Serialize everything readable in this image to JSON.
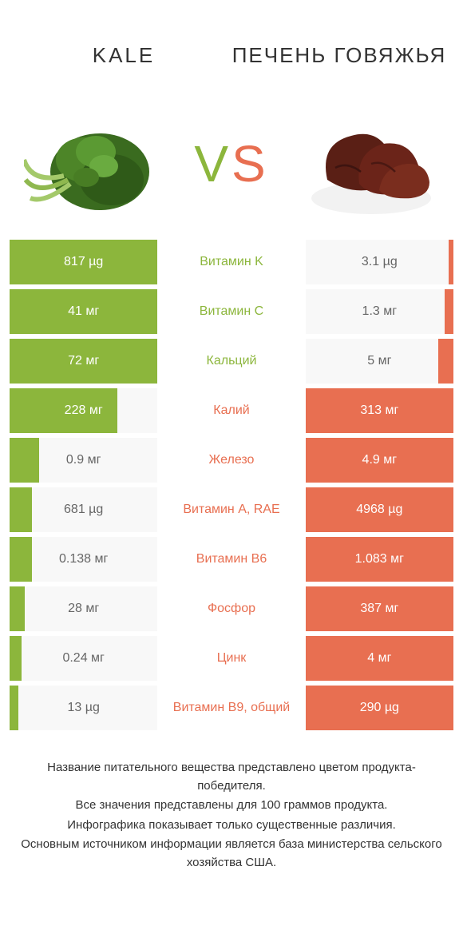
{
  "colors": {
    "left": "#8cb63c",
    "right": "#e86f51",
    "row_bg": "#f8f8f8",
    "text_dark": "#333333",
    "text_muted": "#666666"
  },
  "header": {
    "left_title": "KALE",
    "right_title": "ПЕЧЕНЬ ГОВЯЖЬЯ",
    "vs_v": "V",
    "vs_s": "S"
  },
  "rows": [
    {
      "label": "Витамин K",
      "left": "817 µg",
      "right": "3.1 µg",
      "winner": "left",
      "left_pct": 100,
      "right_pct": 3
    },
    {
      "label": "Витамин C",
      "left": "41 мг",
      "right": "1.3 мг",
      "winner": "left",
      "left_pct": 100,
      "right_pct": 6
    },
    {
      "label": "Кальций",
      "left": "72 мг",
      "right": "5 мг",
      "winner": "left",
      "left_pct": 100,
      "right_pct": 10
    },
    {
      "label": "Калий",
      "left": "228 мг",
      "right": "313 мг",
      "winner": "right",
      "left_pct": 73,
      "right_pct": 100
    },
    {
      "label": "Железо",
      "left": "0.9 мг",
      "right": "4.9 мг",
      "winner": "right",
      "left_pct": 20,
      "right_pct": 100
    },
    {
      "label": "Витамин A, RAE",
      "left": "681 µg",
      "right": "4968 µg",
      "winner": "right",
      "left_pct": 15,
      "right_pct": 100
    },
    {
      "label": "Витамин B6",
      "left": "0.138 мг",
      "right": "1.083 мг",
      "winner": "right",
      "left_pct": 15,
      "right_pct": 100
    },
    {
      "label": "Фосфор",
      "left": "28 мг",
      "right": "387 мг",
      "winner": "right",
      "left_pct": 10,
      "right_pct": 100
    },
    {
      "label": "Цинк",
      "left": "0.24 мг",
      "right": "4 мг",
      "winner": "right",
      "left_pct": 8,
      "right_pct": 100
    },
    {
      "label": "Витамин B9, общий",
      "left": "13 µg",
      "right": "290 µg",
      "winner": "right",
      "left_pct": 6,
      "right_pct": 100
    }
  ],
  "footer": {
    "line1": "Название питательного вещества представлено цветом продукта-победителя.",
    "line2": "Все значения представлены для 100 граммов продукта.",
    "line3": "Инфографика показывает только существенные различия.",
    "line4": "Основным источником информации является база министерства сельского хозяйства США."
  }
}
